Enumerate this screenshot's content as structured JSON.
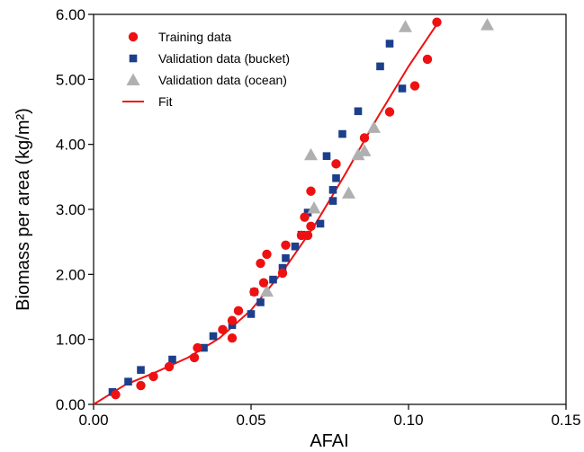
{
  "chart_data": {
    "type": "scatter",
    "xlabel": "AFAI",
    "ylabel": "Biomass per area (kg/m²)",
    "xlim": [
      0,
      0.15
    ],
    "ylim": [
      0,
      6
    ],
    "x_ticks": [
      "0.00",
      "0.05",
      "0.10",
      "0.15"
    ],
    "y_ticks": [
      "0.00",
      "1.00",
      "2.00",
      "3.00",
      "4.00",
      "5.00",
      "6.00"
    ],
    "grid": false,
    "legend_position": "top-left",
    "series": [
      {
        "name": "Training data",
        "marker": "circle",
        "color": "#ee1111",
        "points": [
          [
            0.007,
            0.15
          ],
          [
            0.015,
            0.29
          ],
          [
            0.019,
            0.43
          ],
          [
            0.024,
            0.58
          ],
          [
            0.032,
            0.72
          ],
          [
            0.033,
            0.87
          ],
          [
            0.041,
            1.15
          ],
          [
            0.044,
            1.02
          ],
          [
            0.044,
            1.29
          ],
          [
            0.046,
            1.44
          ],
          [
            0.051,
            1.73
          ],
          [
            0.053,
            2.17
          ],
          [
            0.054,
            1.87
          ],
          [
            0.055,
            2.31
          ],
          [
            0.06,
            2.02
          ],
          [
            0.061,
            2.45
          ],
          [
            0.066,
            2.6
          ],
          [
            0.067,
            2.88
          ],
          [
            0.068,
            2.6
          ],
          [
            0.069,
            2.74
          ],
          [
            0.069,
            3.28
          ],
          [
            0.077,
            3.7
          ],
          [
            0.086,
            4.1
          ],
          [
            0.094,
            4.5
          ],
          [
            0.102,
            4.9
          ],
          [
            0.106,
            5.31
          ],
          [
            0.109,
            5.88
          ]
        ]
      },
      {
        "name": "Validation data (bucket)",
        "marker": "square",
        "color": "#1c3f8c",
        "points": [
          [
            0.006,
            0.19
          ],
          [
            0.011,
            0.35
          ],
          [
            0.015,
            0.53
          ],
          [
            0.025,
            0.69
          ],
          [
            0.035,
            0.87
          ],
          [
            0.038,
            1.05
          ],
          [
            0.044,
            1.22
          ],
          [
            0.05,
            1.39
          ],
          [
            0.051,
            1.73
          ],
          [
            0.053,
            1.57
          ],
          [
            0.057,
            1.92
          ],
          [
            0.06,
            2.1
          ],
          [
            0.061,
            2.25
          ],
          [
            0.064,
            2.43
          ],
          [
            0.066,
            2.61
          ],
          [
            0.068,
            2.95
          ],
          [
            0.072,
            2.78
          ],
          [
            0.074,
            3.82
          ],
          [
            0.076,
            3.3
          ],
          [
            0.076,
            3.13
          ],
          [
            0.077,
            3.48
          ],
          [
            0.079,
            4.16
          ],
          [
            0.084,
            4.51
          ],
          [
            0.091,
            5.2
          ],
          [
            0.094,
            5.55
          ],
          [
            0.098,
            4.86
          ]
        ]
      },
      {
        "name": "Validation data (ocean)",
        "marker": "triangle",
        "color": "#b0b0b0",
        "points": [
          [
            0.055,
            1.74
          ],
          [
            0.069,
            3.84
          ],
          [
            0.07,
            3.02
          ],
          [
            0.081,
            3.25
          ],
          [
            0.084,
            3.84
          ],
          [
            0.086,
            3.9
          ],
          [
            0.089,
            4.26
          ],
          [
            0.099,
            5.81
          ],
          [
            0.125,
            5.84
          ]
        ]
      },
      {
        "name": "Fit",
        "marker": "line",
        "color": "#ee1111",
        "points": [
          [
            0.0,
            0.0
          ],
          [
            0.01,
            0.3
          ],
          [
            0.02,
            0.5
          ],
          [
            0.03,
            0.72
          ],
          [
            0.04,
            1.02
          ],
          [
            0.05,
            1.45
          ],
          [
            0.06,
            2.04
          ],
          [
            0.07,
            2.74
          ],
          [
            0.08,
            3.55
          ],
          [
            0.09,
            4.4
          ],
          [
            0.1,
            5.2
          ],
          [
            0.11,
            5.92
          ]
        ]
      }
    ]
  }
}
